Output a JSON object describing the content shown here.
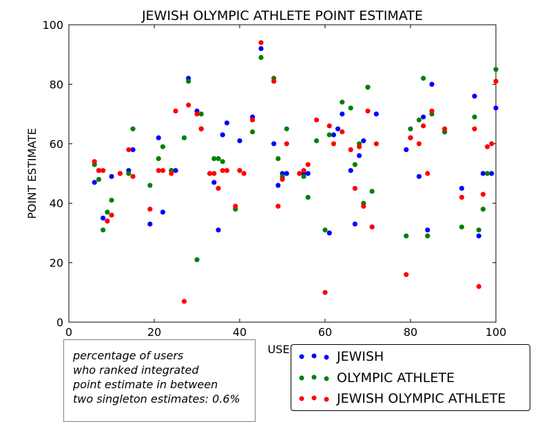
{
  "chart_data": {
    "type": "scatter",
    "title": "JEWISH OLYMPIC ATHLETE POINT ESTIMATE",
    "xlabel": "USER",
    "ylabel": "POINT ESTIMATE",
    "xlim": [
      0,
      100
    ],
    "ylim": [
      0,
      100
    ],
    "xticks": [
      "0",
      "20",
      "40",
      "60",
      "80",
      "100"
    ],
    "yticks": [
      "0",
      "20",
      "40",
      "60",
      "80",
      "100"
    ],
    "grid": false,
    "legend_placement": "lower-right",
    "series": [
      {
        "name": "JEWISH",
        "color": "#0000ff",
        "points": [
          [
            6,
            47
          ],
          [
            7,
            51
          ],
          [
            8,
            35
          ],
          [
            9,
            34
          ],
          [
            10,
            49
          ],
          [
            12,
            50
          ],
          [
            14,
            51
          ],
          [
            15,
            58
          ],
          [
            19,
            33
          ],
          [
            21,
            62
          ],
          [
            22,
            37
          ],
          [
            24,
            51
          ],
          [
            25,
            51
          ],
          [
            28,
            82
          ],
          [
            30,
            71
          ],
          [
            31,
            65
          ],
          [
            33,
            50
          ],
          [
            34,
            47
          ],
          [
            35,
            31
          ],
          [
            36,
            63
          ],
          [
            37,
            67
          ],
          [
            40,
            61
          ],
          [
            43,
            69
          ],
          [
            45,
            92
          ],
          [
            48,
            60
          ],
          [
            49,
            46
          ],
          [
            50,
            50
          ],
          [
            51,
            50
          ],
          [
            54,
            50
          ],
          [
            55,
            50
          ],
          [
            56,
            50
          ],
          [
            61,
            30
          ],
          [
            62,
            63
          ],
          [
            63,
            65
          ],
          [
            64,
            70
          ],
          [
            66,
            51
          ],
          [
            67,
            33
          ],
          [
            68,
            56
          ],
          [
            69,
            61
          ],
          [
            70,
            79
          ],
          [
            71,
            32
          ],
          [
            72,
            70
          ],
          [
            79,
            58
          ],
          [
            80,
            62
          ],
          [
            82,
            49
          ],
          [
            83,
            69
          ],
          [
            84,
            31
          ],
          [
            85,
            80
          ],
          [
            88,
            64
          ],
          [
            92,
            45
          ],
          [
            95,
            76
          ],
          [
            96,
            29
          ],
          [
            97,
            50
          ],
          [
            99,
            50
          ],
          [
            100,
            72
          ]
        ]
      },
      {
        "name": "OLYMPIC ATHLETE",
        "color": "#008000",
        "points": [
          [
            6,
            53
          ],
          [
            7,
            48
          ],
          [
            8,
            31
          ],
          [
            9,
            37
          ],
          [
            10,
            41
          ],
          [
            14,
            50
          ],
          [
            15,
            65
          ],
          [
            19,
            46
          ],
          [
            21,
            55
          ],
          [
            22,
            59
          ],
          [
            24,
            51
          ],
          [
            27,
            62
          ],
          [
            28,
            81
          ],
          [
            30,
            21
          ],
          [
            31,
            70
          ],
          [
            34,
            55
          ],
          [
            35,
            55
          ],
          [
            36,
            54
          ],
          [
            39,
            38
          ],
          [
            40,
            51
          ],
          [
            43,
            64
          ],
          [
            45,
            89
          ],
          [
            48,
            82
          ],
          [
            49,
            55
          ],
          [
            50,
            49
          ],
          [
            51,
            65
          ],
          [
            55,
            49
          ],
          [
            56,
            42
          ],
          [
            58,
            61
          ],
          [
            60,
            31
          ],
          [
            61,
            63
          ],
          [
            64,
            74
          ],
          [
            66,
            72
          ],
          [
            67,
            53
          ],
          [
            68,
            60
          ],
          [
            69,
            40
          ],
          [
            70,
            79
          ],
          [
            71,
            44
          ],
          [
            79,
            29
          ],
          [
            80,
            65
          ],
          [
            82,
            68
          ],
          [
            83,
            82
          ],
          [
            84,
            29
          ],
          [
            85,
            70
          ],
          [
            88,
            64
          ],
          [
            92,
            32
          ],
          [
            95,
            69
          ],
          [
            96,
            31
          ],
          [
            97,
            38
          ],
          [
            98,
            50
          ],
          [
            100,
            85
          ]
        ]
      },
      {
        "name": "JEWISH OLYMPIC ATHLETE",
        "color": "#ff0000",
        "points": [
          [
            6,
            54
          ],
          [
            7,
            51
          ],
          [
            8,
            51
          ],
          [
            9,
            34
          ],
          [
            10,
            36
          ],
          [
            12,
            50
          ],
          [
            14,
            58
          ],
          [
            15,
            49
          ],
          [
            19,
            38
          ],
          [
            21,
            51
          ],
          [
            22,
            51
          ],
          [
            24,
            50
          ],
          [
            25,
            71
          ],
          [
            27,
            7
          ],
          [
            28,
            73
          ],
          [
            30,
            70
          ],
          [
            31,
            65
          ],
          [
            33,
            50
          ],
          [
            34,
            50
          ],
          [
            35,
            45
          ],
          [
            36,
            51
          ],
          [
            37,
            51
          ],
          [
            39,
            39
          ],
          [
            40,
            51
          ],
          [
            41,
            50
          ],
          [
            43,
            68
          ],
          [
            45,
            94
          ],
          [
            48,
            81
          ],
          [
            49,
            39
          ],
          [
            50,
            48
          ],
          [
            51,
            60
          ],
          [
            54,
            50
          ],
          [
            55,
            51
          ],
          [
            56,
            53
          ],
          [
            58,
            68
          ],
          [
            60,
            10
          ],
          [
            61,
            66
          ],
          [
            62,
            60
          ],
          [
            64,
            64
          ],
          [
            66,
            58
          ],
          [
            67,
            45
          ],
          [
            68,
            59
          ],
          [
            69,
            39
          ],
          [
            70,
            71
          ],
          [
            71,
            32
          ],
          [
            72,
            60
          ],
          [
            79,
            16
          ],
          [
            80,
            62
          ],
          [
            82,
            60
          ],
          [
            83,
            66
          ],
          [
            84,
            50
          ],
          [
            85,
            71
          ],
          [
            88,
            65
          ],
          [
            92,
            42
          ],
          [
            95,
            65
          ],
          [
            96,
            12
          ],
          [
            97,
            43
          ],
          [
            98,
            59
          ],
          [
            99,
            60
          ],
          [
            100,
            81
          ]
        ]
      }
    ],
    "annotation": {
      "lines": [
        "percentage of users",
        "who ranked integrated",
        "point estimate in between",
        "two singleton estimates: 0.6%"
      ]
    }
  }
}
